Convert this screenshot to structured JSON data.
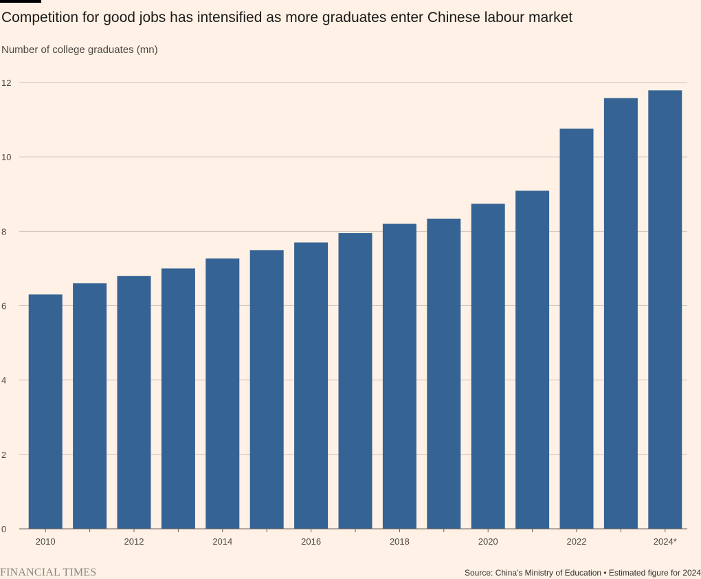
{
  "title": "Competition for good jobs has intensified as more graduates enter Chinese labour market",
  "subtitle": "Number of college graduates (mn)",
  "footer": {
    "logo": "FINANCIAL TIMES",
    "source": "Source: China's Ministry of Education • Estimated figure for 2024"
  },
  "colors": {
    "bar": "#356394",
    "grid": "#ccc1b7",
    "background": "#fff1e5"
  },
  "chart_data": {
    "type": "bar",
    "categories": [
      "2010",
      "2011",
      "2012",
      "2013",
      "2014",
      "2015",
      "2016",
      "2017",
      "2018",
      "2019",
      "2020",
      "2021",
      "2022",
      "2023",
      "2024*"
    ],
    "x_tick_labels": [
      "2010",
      "",
      "2012",
      "",
      "2014",
      "",
      "2016",
      "",
      "2018",
      "",
      "2020",
      "",
      "2022",
      "",
      "2024*"
    ],
    "values": [
      6.3,
      6.6,
      6.8,
      7.0,
      7.27,
      7.49,
      7.7,
      7.95,
      8.2,
      8.34,
      8.74,
      9.09,
      10.76,
      11.58,
      11.79
    ],
    "ylim": [
      0,
      12
    ],
    "yticks": [
      0,
      2,
      4,
      6,
      8,
      10,
      12
    ],
    "xlabel": "",
    "ylabel": "Number of college graduates (mn)",
    "grid": true
  }
}
